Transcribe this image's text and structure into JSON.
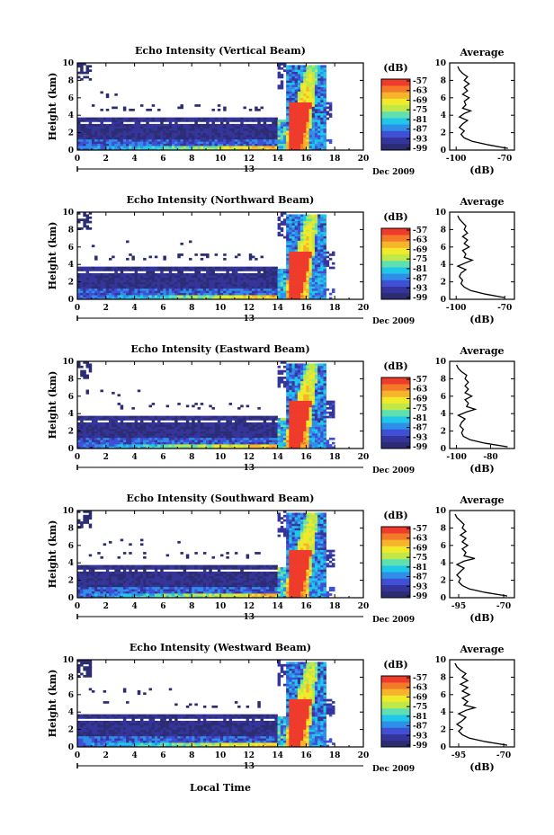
{
  "figure": {
    "xlabel": "Local Time",
    "date_label": "Dec 2009",
    "day_label": "13",
    "colorbar_unit": "(dB)",
    "colorbar_ticks": [
      "-57",
      "-63",
      "-69",
      "-75",
      "-81",
      "-87",
      "-93",
      "-99"
    ],
    "colormap": [
      "#2c2c74",
      "#34349a",
      "#3f4fd6",
      "#2f8fe8",
      "#20c7e8",
      "#5fe0b0",
      "#bfe84a",
      "#f0ea2a",
      "#f6b42a",
      "#f47a2a",
      "#ee3b2b"
    ]
  },
  "chart_data": [
    {
      "type": "heatmap",
      "title": "Echo Intensity (Vertical Beam)",
      "ylabel": "Height (km)",
      "x_ticks": [
        "0",
        "2",
        "4",
        "6",
        "8",
        "10",
        "12",
        "14",
        "16",
        "18",
        "20"
      ],
      "xlim": [
        0,
        20
      ],
      "y_ticks": [
        "0",
        "2",
        "4",
        "6",
        "8",
        "10"
      ],
      "ylim": [
        0,
        10
      ],
      "clim": [
        -99,
        -57
      ],
      "data_end_hour": 17.8,
      "average": {
        "title": "Average",
        "xlabel": "(dB)",
        "x_ticks": [
          "-100",
          "-70"
        ],
        "xlim": [
          -104,
          -64
        ],
        "y_ticks": [
          "0",
          "2",
          "4",
          "6",
          "8",
          "10"
        ],
        "height_km": [
          0.2,
          0.6,
          1.0,
          1.4,
          1.8,
          2.2,
          2.6,
          3.0,
          3.4,
          3.8,
          4.2,
          4.5,
          4.8,
          5.2,
          5.6,
          6.0,
          6.4,
          6.8,
          7.2,
          7.6,
          8.0,
          8.4,
          8.8,
          9.2,
          9.6
        ],
        "db": [
          -68,
          -80,
          -90,
          -95,
          -97,
          -95,
          -98,
          -96,
          -93,
          -98,
          -95,
          -91,
          -96,
          -94,
          -95,
          -92,
          -96,
          -93,
          -95,
          -92,
          -95,
          -93,
          -96,
          -98,
          -99
        ]
      }
    },
    {
      "type": "heatmap",
      "title": "Echo Intensity (Northward Beam)",
      "ylabel": "Height (km)",
      "x_ticks": [
        "0",
        "2",
        "4",
        "6",
        "8",
        "10",
        "12",
        "14",
        "16",
        "18",
        "20"
      ],
      "xlim": [
        0,
        20
      ],
      "y_ticks": [
        "0",
        "2",
        "4",
        "6",
        "8",
        "10"
      ],
      "ylim": [
        0,
        10
      ],
      "clim": [
        -99,
        -57
      ],
      "data_end_hour": 18.0,
      "average": {
        "title": "Average",
        "xlabel": "(dB)",
        "x_ticks": [
          "-100",
          "-70"
        ],
        "xlim": [
          -104,
          -64
        ],
        "y_ticks": [
          "0",
          "2",
          "4",
          "6",
          "8",
          "10"
        ],
        "height_km": [
          0.2,
          0.6,
          1.0,
          1.4,
          1.8,
          2.2,
          2.6,
          3.0,
          3.4,
          3.8,
          4.2,
          4.5,
          4.8,
          5.2,
          5.6,
          6.0,
          6.4,
          6.8,
          7.2,
          7.6,
          8.0,
          8.4,
          8.8,
          9.2,
          9.6
        ],
        "db": [
          -70,
          -82,
          -91,
          -95,
          -97,
          -96,
          -98,
          -97,
          -94,
          -99,
          -94,
          -90,
          -95,
          -94,
          -96,
          -92,
          -95,
          -93,
          -96,
          -93,
          -95,
          -94,
          -96,
          -98,
          -99
        ]
      }
    },
    {
      "type": "heatmap",
      "title": "Echo Intensity (Eastward Beam)",
      "ylabel": "Height (km)",
      "x_ticks": [
        "0",
        "2",
        "4",
        "6",
        "8",
        "10",
        "12",
        "14",
        "16",
        "18",
        "20"
      ],
      "xlim": [
        0,
        20
      ],
      "y_ticks": [
        "0",
        "2",
        "4",
        "6",
        "8",
        "10"
      ],
      "ylim": [
        0,
        10
      ],
      "clim": [
        -99,
        -57
      ],
      "data_end_hour": 18.0,
      "average": {
        "title": "Average",
        "xlabel": "(dB)",
        "x_ticks": [
          "-100",
          "-80"
        ],
        "xlim": [
          -104,
          -66
        ],
        "y_ticks": [
          "0",
          "2",
          "4",
          "6",
          "8",
          "10"
        ],
        "height_km": [
          0.2,
          0.6,
          1.0,
          1.4,
          1.8,
          2.2,
          2.6,
          3.0,
          3.4,
          3.8,
          4.2,
          4.5,
          4.8,
          5.2,
          5.6,
          6.0,
          6.4,
          6.8,
          7.2,
          7.6,
          8.0,
          8.4,
          8.8,
          9.2,
          9.6
        ],
        "db": [
          -70,
          -83,
          -92,
          -96,
          -97,
          -96,
          -98,
          -97,
          -95,
          -99,
          -94,
          -89,
          -94,
          -93,
          -95,
          -91,
          -95,
          -93,
          -95,
          -93,
          -95,
          -94,
          -97,
          -99,
          -100
        ]
      }
    },
    {
      "type": "heatmap",
      "title": "Echo Intensity (Southward Beam)",
      "ylabel": "Height (km)",
      "x_ticks": [
        "0",
        "2",
        "4",
        "6",
        "8",
        "10",
        "12",
        "14",
        "16",
        "18",
        "20"
      ],
      "xlim": [
        0,
        20
      ],
      "y_ticks": [
        "0",
        "2",
        "4",
        "6",
        "8",
        "10"
      ],
      "ylim": [
        0,
        10
      ],
      "clim": [
        -99,
        -57
      ],
      "data_end_hour": 18.0,
      "average": {
        "title": "Average",
        "xlabel": "(dB)",
        "x_ticks": [
          "-95",
          "-70"
        ],
        "xlim": [
          -100,
          -64
        ],
        "y_ticks": [
          "0",
          "2",
          "4",
          "6",
          "8",
          "10"
        ],
        "height_km": [
          0.2,
          0.6,
          1.0,
          1.4,
          1.8,
          2.2,
          2.6,
          3.0,
          3.4,
          3.8,
          4.2,
          4.5,
          4.8,
          5.2,
          5.6,
          6.0,
          6.4,
          6.8,
          7.2,
          7.6,
          8.0,
          8.4,
          8.8,
          9.2,
          9.6
        ],
        "db": [
          -68,
          -80,
          -89,
          -93,
          -95,
          -94,
          -96,
          -94,
          -92,
          -96,
          -92,
          -86,
          -92,
          -91,
          -93,
          -90,
          -93,
          -91,
          -94,
          -91,
          -93,
          -92,
          -94,
          -96,
          -97
        ]
      }
    },
    {
      "type": "heatmap",
      "title": "Echo Intensity (Westward Beam)",
      "ylabel": "Height (km)",
      "x_ticks": [
        "0",
        "2",
        "4",
        "6",
        "8",
        "10",
        "12",
        "14",
        "16",
        "18",
        "20"
      ],
      "xlim": [
        0,
        20
      ],
      "y_ticks": [
        "0",
        "2",
        "4",
        "6",
        "8",
        "10"
      ],
      "ylim": [
        0,
        10
      ],
      "clim": [
        -99,
        -57
      ],
      "data_end_hour": 18.0,
      "average": {
        "title": "Average",
        "xlabel": "(dB)",
        "x_ticks": [
          "-95",
          "-70"
        ],
        "xlim": [
          -100,
          -64
        ],
        "y_ticks": [
          "0",
          "2",
          "4",
          "6",
          "8",
          "10"
        ],
        "height_km": [
          0.2,
          0.6,
          1.0,
          1.4,
          1.8,
          2.2,
          2.6,
          3.0,
          3.4,
          3.8,
          4.2,
          4.5,
          4.8,
          5.2,
          5.6,
          6.0,
          6.4,
          6.8,
          7.2,
          7.6,
          8.0,
          8.4,
          8.8,
          9.2,
          9.6
        ],
        "db": [
          -68,
          -80,
          -89,
          -93,
          -95,
          -93,
          -96,
          -93,
          -91,
          -95,
          -91,
          -86,
          -92,
          -90,
          -93,
          -89,
          -93,
          -90,
          -94,
          -90,
          -93,
          -91,
          -94,
          -96,
          -97
        ]
      }
    }
  ]
}
